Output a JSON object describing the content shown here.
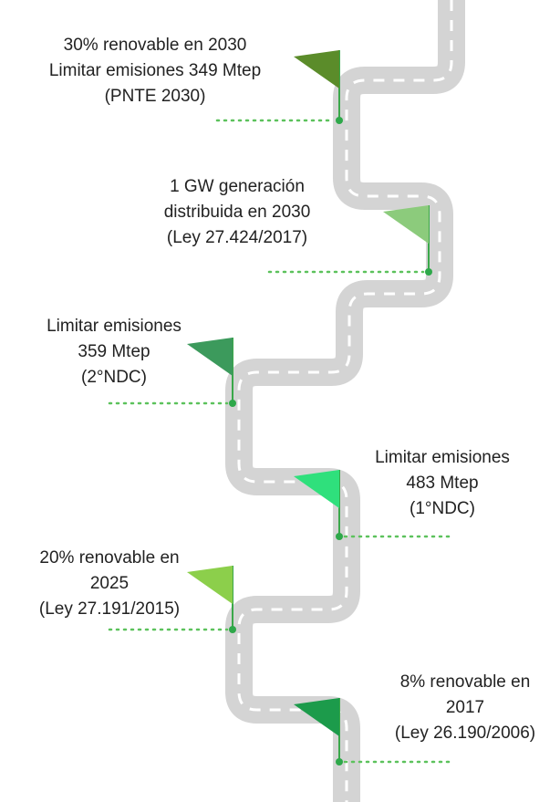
{
  "milestones": [
    {
      "lines": [
        "30% renovable en 2030",
        "Limitar emisiones 349 Mtep",
        "(PNTE 2030)"
      ]
    },
    {
      "lines": [
        "1 GW generación",
        "distribuida en 2030",
        "(Ley 27.424/2017)"
      ]
    },
    {
      "lines": [
        "Limitar emisiones",
        "359 Mtep",
        "(2°NDC)"
      ]
    },
    {
      "lines": [
        "Limitar emisiones",
        "483 Mtep",
        "(1°NDC)"
      ]
    },
    {
      "lines": [
        "20% renovable en",
        "2025",
        "(Ley 27.191/2015)"
      ]
    },
    {
      "lines": [
        "8% renovable en",
        "2017",
        "(Ley 26.190/2006)"
      ]
    }
  ]
}
